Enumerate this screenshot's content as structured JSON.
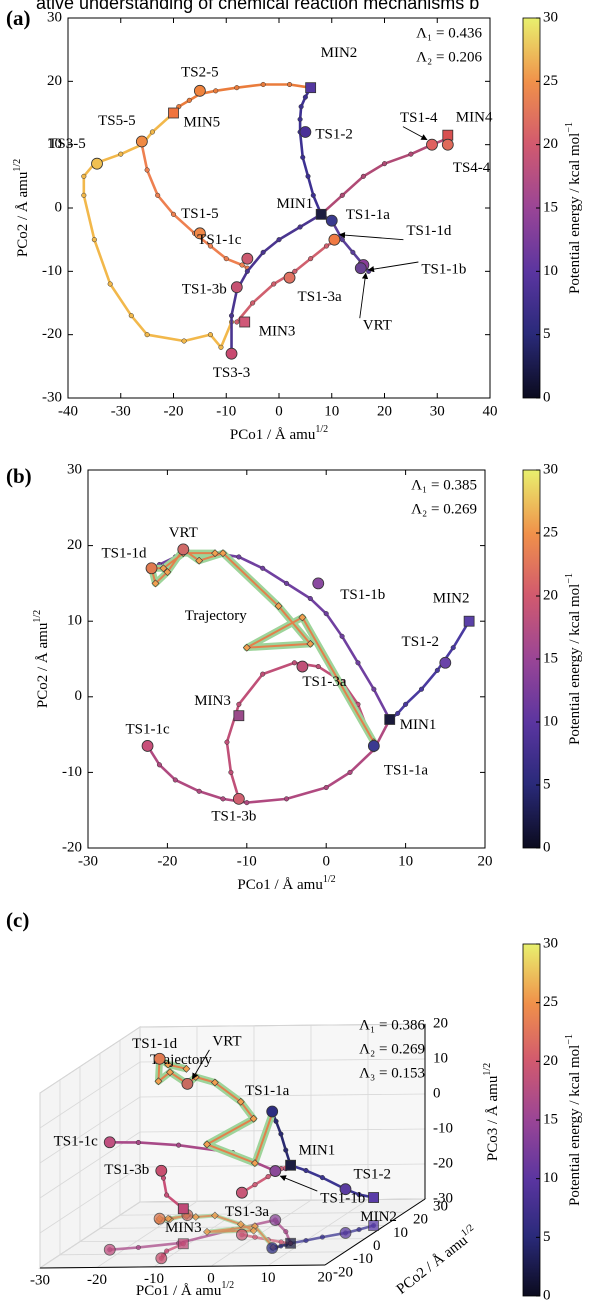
{
  "header": {
    "text": "ative understanding of chemical reaction mechanisms b"
  },
  "chart_data": [
    {
      "type": "line",
      "panel_label": "(a)",
      "xlabel": "PCo1 / Å amu",
      "xlabel_sup": "1/2",
      "ylabel": "PCo2 / Å amu",
      "ylabel_sup": "1/2",
      "xlim": [
        -40,
        40
      ],
      "xticks": [
        -40,
        -30,
        -20,
        -10,
        0,
        10,
        20,
        30,
        40
      ],
      "ylim": [
        -30,
        30
      ],
      "yticks": [
        -30,
        -20,
        -10,
        0,
        10,
        20,
        30
      ],
      "annotations": [
        "Λ₁ = 0.436",
        "Λ₂ = 0.206"
      ],
      "series": [
        {
          "color": "#3d3192",
          "x": [
            8,
            6.5,
            5.5,
            4.5,
            4,
            4,
            4.2,
            5,
            6
          ],
          "y": [
            -1,
            2,
            5,
            8,
            12,
            14,
            16,
            17.5,
            19
          ]
        },
        {
          "color": "#ea7c3c",
          "x": [
            6,
            2,
            -3,
            -8,
            -12,
            -15,
            -17,
            -19,
            -20
          ],
          "y": [
            19,
            19.5,
            19.5,
            19,
            18.5,
            18,
            17,
            16,
            15
          ]
        },
        {
          "color": "#f2b84b",
          "x": [
            -20,
            -24,
            -26,
            -30,
            -35,
            -37,
            -37,
            -35,
            -32,
            -28,
            -25,
            -18,
            -13,
            -11,
            -9
          ],
          "y": [
            15,
            12,
            10,
            8.5,
            7,
            5,
            2,
            -5,
            -12,
            -17,
            -20,
            -21,
            -20,
            -22,
            -18
          ]
        },
        {
          "color": "#ee8050",
          "x": [
            -26,
            -25,
            -23,
            -20,
            -16,
            -13,
            -10,
            -7,
            -6
          ],
          "y": [
            10,
            6,
            2,
            -1,
            -4,
            -6,
            -8,
            -9,
            -9.5
          ]
        },
        {
          "color": "#b04a75",
          "x": [
            8,
            12,
            16,
            20,
            25,
            29,
            32
          ],
          "y": [
            -1,
            2,
            5,
            7,
            8.5,
            10,
            11
          ]
        },
        {
          "color": "#4a3590",
          "x": [
            8,
            4,
            0,
            -3,
            -6,
            -8,
            -9,
            -9
          ],
          "y": [
            -1,
            -3,
            -5,
            -7,
            -10,
            -13,
            -17,
            -23
          ]
        },
        {
          "color": "#d0606e",
          "x": [
            -8,
            -5,
            -1,
            3,
            6,
            9,
            11
          ],
          "y": [
            -18,
            -15,
            -12,
            -10,
            -8,
            -6,
            -5
          ]
        },
        {
          "color": "#5a3f9a",
          "x": [
            8,
            10,
            12,
            14,
            16,
            17
          ],
          "y": [
            -1,
            -2,
            -5,
            -7,
            -9,
            -10
          ]
        }
      ],
      "points": [
        {
          "label": "MIN1",
          "x": 8,
          "y": -1,
          "color": "#1c1c40",
          "marker": "square"
        },
        {
          "label": "TS1-2",
          "x": 5,
          "y": 12,
          "color": "#4a3098",
          "marker": "circle"
        },
        {
          "label": "MIN2",
          "x": 6,
          "y": 19,
          "color": "#5438a0",
          "marker": "square"
        },
        {
          "label": "TS2-5",
          "x": -15,
          "y": 18.5,
          "color": "#f0843e",
          "marker": "circle"
        },
        {
          "label": "MIN5",
          "x": -20,
          "y": 15,
          "color": "#f0743e",
          "marker": "square"
        },
        {
          "label": "TS5-5",
          "x": -26,
          "y": 10.5,
          "color": "#f08a44",
          "marker": "circle"
        },
        {
          "label": "TS3-5",
          "x": -34.5,
          "y": 7,
          "color": "#f0c052",
          "marker": "circle"
        },
        {
          "label": "TS1-5",
          "x": -15,
          "y": -4,
          "color": "#f08848",
          "marker": "circle"
        },
        {
          "label": "TS1-1c",
          "x": -6,
          "y": -8,
          "color": "#cc5a70",
          "marker": "circle"
        },
        {
          "label": "TS1-3b",
          "x": -8,
          "y": -12.5,
          "color": "#c65272",
          "marker": "circle"
        },
        {
          "label": "TS1-3a",
          "x": 2,
          "y": -11,
          "color": "#e07262",
          "marker": "circle"
        },
        {
          "label": "MIN3",
          "x": -6.5,
          "y": -18,
          "color": "#d05878",
          "marker": "square"
        },
        {
          "label": "TS3-3",
          "x": -9,
          "y": -23,
          "color": "#c84a70",
          "marker": "circle"
        },
        {
          "label": "TS1-1a",
          "x": 10,
          "y": -2,
          "color": "#3a3a8e",
          "marker": "circle"
        },
        {
          "label": "TS1-1d",
          "x": 10.5,
          "y": -5,
          "color": "#f07a44",
          "marker": "circle"
        },
        {
          "label": "TS1-1b",
          "x": 16,
          "y": -9,
          "color": "#8a3c98",
          "marker": "circle"
        },
        {
          "label": "VRT",
          "x": 15.5,
          "y": -9.5,
          "color": "#6a4292",
          "marker": "circle"
        },
        {
          "label": "TS1-4",
          "x": 29,
          "y": 10,
          "color": "#e06060",
          "marker": "circle"
        },
        {
          "label": "MIN4",
          "x": 32,
          "y": 11.5,
          "color": "#d85050",
          "marker": "square"
        },
        {
          "label": "TS4-4",
          "x": 32,
          "y": 10,
          "color": "#e06a5a",
          "marker": "circle"
        }
      ],
      "colorbar": {
        "label": "Potential energy / kcal mol",
        "label_sup": "−1",
        "lim": [
          0,
          30
        ],
        "ticks": [
          0,
          5,
          10,
          15,
          20,
          25,
          30
        ]
      }
    },
    {
      "type": "line",
      "panel_label": "(b)",
      "xlabel": "PCo1 / Å amu",
      "xlabel_sup": "1/2",
      "ylabel": "PCo2 / Å amu",
      "ylabel_sup": "1/2",
      "xlim": [
        -30,
        20
      ],
      "xticks": [
        -30,
        -20,
        -10,
        0,
        10,
        20
      ],
      "ylim": [
        -20,
        30
      ],
      "yticks": [
        -20,
        -10,
        0,
        10,
        20,
        30
      ],
      "annotations": [
        "Λ₁ = 0.385",
        "Λ₂ = 0.269"
      ],
      "series": [
        {
          "color": "#4a3aa0",
          "x": [
            18,
            16,
            14,
            12,
            10,
            9,
            8
          ],
          "y": [
            10,
            6.5,
            3.5,
            1,
            -1,
            -2.2,
            -3
          ]
        },
        {
          "color": "#7040a0",
          "x": [
            8,
            6,
            4,
            2,
            0,
            -2,
            -5,
            -8,
            -11,
            -14,
            -17,
            -19,
            -21,
            -22
          ],
          "y": [
            -3,
            1,
            4.5,
            8,
            11,
            13,
            15,
            17,
            18.5,
            19,
            19,
            18.5,
            17.5,
            17
          ]
        },
        {
          "color": "#b04a80",
          "x": [
            8,
            6,
            3,
            0,
            -5,
            -10,
            -13,
            -16,
            -19,
            -21,
            -22.5
          ],
          "y": [
            -3,
            -7,
            -10,
            -12,
            -13.5,
            -14,
            -13.5,
            -12.5,
            -11,
            -9,
            -6.5
          ]
        },
        {
          "color": "#c05078",
          "x": [
            6,
            4,
            2,
            -1,
            -4,
            -8,
            -11,
            -12.5,
            -12,
            -11
          ],
          "y": [
            -6.5,
            -1,
            2,
            4,
            4.5,
            3,
            -1,
            -6,
            -10,
            -13.5
          ]
        },
        {
          "name": "Trajectory",
          "color": "#e2804c",
          "x": [
            6,
            -3,
            -10,
            -2,
            -6,
            -13,
            -16,
            -18,
            -20,
            -21.5,
            -22,
            -20.5,
            -18,
            -14
          ],
          "y": [
            -6,
            10.5,
            6.5,
            7,
            12,
            19,
            18,
            19.5,
            16.5,
            15,
            17,
            17,
            19,
            19
          ]
        }
      ],
      "points": [
        {
          "label": "MIN1",
          "x": 8,
          "y": -3,
          "color": "#1a1a3a",
          "marker": "square"
        },
        {
          "label": "TS1-1a",
          "x": 6,
          "y": -6.5,
          "color": "#3a3a90",
          "marker": "circle"
        },
        {
          "label": "MIN2",
          "x": 18,
          "y": 10,
          "color": "#5a40a8",
          "marker": "square"
        },
        {
          "label": "TS1-2",
          "x": 15,
          "y": 4.5,
          "color": "#6a44a8",
          "marker": "circle"
        },
        {
          "label": "TS1-1b",
          "x": -1,
          "y": 15,
          "color": "#8a4aa0",
          "marker": "circle"
        },
        {
          "label": "VRT",
          "x": -18,
          "y": 19.5,
          "color": "#d06a68",
          "marker": "circle"
        },
        {
          "label": "TS1-1d",
          "x": -22,
          "y": 17,
          "color": "#e07a50",
          "marker": "circle"
        },
        {
          "label": "TS1-3a",
          "x": -3,
          "y": 4,
          "color": "#c05078",
          "marker": "circle"
        },
        {
          "label": "MIN3",
          "x": -11,
          "y": -2.5,
          "color": "#9a4a8a",
          "marker": "square"
        },
        {
          "label": "TS1-1c",
          "x": -22.5,
          "y": -6.5,
          "color": "#c8507a",
          "marker": "circle"
        },
        {
          "label": "TS1-3b",
          "x": -11,
          "y": -13.5,
          "color": "#d06070",
          "marker": "circle"
        }
      ],
      "colorbar": {
        "label": "Potential energy / kcal mol",
        "label_sup": "−1",
        "lim": [
          0,
          30
        ],
        "ticks": [
          0,
          5,
          10,
          15,
          20,
          25,
          30
        ]
      }
    },
    {
      "type": "line3d",
      "panel_label": "(c)",
      "xlabel": "PCo1 / Å amu",
      "xlabel_sup": "1/2",
      "ylabel": "PCo2 / Å amu",
      "ylabel_sup": "1/2",
      "zlabel": "PCo3 / Å amu",
      "zlabel_sup": "1/2",
      "xlim": [
        -30,
        20
      ],
      "xticks": [
        -30,
        -20,
        -10,
        0,
        10,
        20
      ],
      "ylim": [
        -20,
        30
      ],
      "yticks": [
        -20,
        -10,
        0,
        10,
        20,
        30
      ],
      "zlim": [
        -30,
        20
      ],
      "zticks": [
        -30,
        -20,
        -10,
        0,
        10,
        20
      ],
      "annotations": [
        "Λ₁ = 0.386",
        "Λ₂ = 0.269",
        "Λ₃ = 0.153"
      ],
      "series": [
        {
          "color": "#3b3590",
          "x": [
            18,
            16.5,
            15,
            12,
            10,
            8
          ],
          "y": [
            10,
            7,
            4.5,
            1.5,
            -1,
            -3
          ],
          "z": [
            -22,
            -20,
            -17.5,
            -13,
            -10,
            -7.7
          ]
        },
        {
          "color": "#2a2a70",
          "x": [
            8,
            7.5,
            7,
            6.5,
            6
          ],
          "y": [
            -3,
            -4,
            -5,
            -6,
            -6.5
          ],
          "z": [
            -7.7,
            -3,
            2,
            6,
            9
          ]
        },
        {
          "color": "#a84a88",
          "x": [
            8,
            4,
            0,
            -1,
            -6,
            -12,
            -18,
            -22.5
          ],
          "y": [
            -3,
            6,
            13,
            15,
            8,
            -2,
            -5,
            -6.5
          ],
          "z": [
            -7.7,
            -12,
            -15,
            -16,
            -8,
            -2,
            0,
            0.7
          ]
        },
        {
          "color": "#c85078",
          "x": [
            -11,
            -12,
            -11.5,
            -11
          ],
          "y": [
            -2.5,
            -8,
            -11,
            -13.5
          ],
          "z": [
            -20,
            -14,
            -8,
            -5
          ]
        },
        {
          "color": "#d0607a",
          "x": [
            -3,
            0,
            3,
            6,
            8
          ],
          "y": [
            4,
            2,
            0,
            -2,
            -3
          ],
          "z": [
            -18,
            -15,
            -12,
            -9,
            -7.7
          ]
        },
        {
          "name": "Trajectory",
          "color": "#e2804c",
          "x": [
            6,
            -3,
            -10,
            -2,
            -6,
            -13,
            -16,
            -18,
            -20,
            -21.5,
            -22,
            -20.5,
            -18
          ],
          "y": [
            -6,
            10.5,
            6.5,
            7,
            12,
            19,
            18,
            19.5,
            16.5,
            15,
            17,
            17,
            19
          ],
          "z": [
            9,
            -12,
            -5,
            2,
            5,
            8,
            10,
            7.5,
            12,
            10,
            15.7,
            14,
            12
          ]
        }
      ],
      "points": [
        {
          "label": "MIN1",
          "x": 8,
          "y": -3,
          "z": -7.7,
          "color": "#1c1c40",
          "marker": "square"
        },
        {
          "label": "TS1-1a",
          "x": 6,
          "y": -6.5,
          "z": 9,
          "color": "#2c2c80",
          "marker": "circle"
        },
        {
          "label": "TS1-2",
          "x": 15,
          "y": 4.5,
          "z": -17.5,
          "color": "#5a3ca0",
          "marker": "circle"
        },
        {
          "label": "MIN2",
          "x": 18,
          "y": 10,
          "z": -22,
          "color": "#5a3ca8",
          "marker": "square"
        },
        {
          "label": "TS1-1c",
          "x": -22.5,
          "y": -6.5,
          "z": 0.7,
          "color": "#c05080",
          "marker": "circle"
        },
        {
          "label": "TS1-3b",
          "x": -11,
          "y": -13.5,
          "z": -5,
          "color": "#c85070",
          "marker": "circle"
        },
        {
          "label": "MIN3",
          "x": -11,
          "y": -2.5,
          "z": -20,
          "color": "#c04a78",
          "marker": "square"
        },
        {
          "label": "TS1-3a",
          "x": -3,
          "y": 4,
          "z": -18,
          "color": "#c85878",
          "marker": "circle"
        },
        {
          "label": "TS1-1b",
          "x": -1,
          "y": 15,
          "z": -16,
          "color": "#8a4898",
          "marker": "circle"
        },
        {
          "label": "VRT",
          "x": -18,
          "y": 19.5,
          "z": 7.5,
          "color": "#c86a60",
          "marker": "circle"
        },
        {
          "label": "TS1-1d",
          "x": -22,
          "y": 17,
          "z": 15.7,
          "color": "#e07a50",
          "marker": "circle"
        }
      ],
      "colorbar": {
        "label": "Potential energy / kcal mol",
        "label_sup": "−1",
        "lim": [
          0,
          30
        ],
        "ticks": [
          0,
          5,
          10,
          15,
          20,
          25,
          30
        ]
      }
    }
  ]
}
